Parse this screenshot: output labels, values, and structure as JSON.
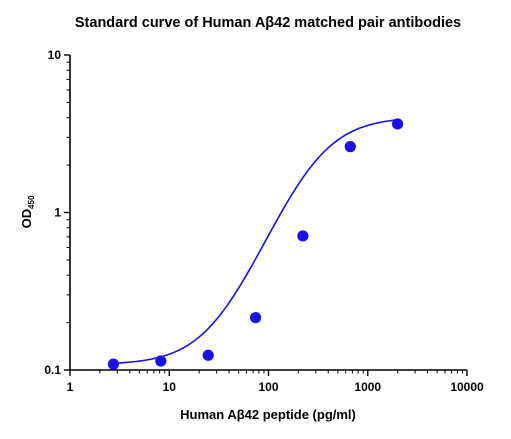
{
  "chart_data": {
    "type": "scatter",
    "title": "Standard curve of Human Aβ42 matched pair antibodies",
    "xlabel": "Human Aβ42 peptide (pg/ml)",
    "ylabel": "OD",
    "ylabel_subscript": "450",
    "x_scale": "log",
    "y_scale": "log",
    "xlim": [
      1,
      10000
    ],
    "ylim": [
      0.1,
      10
    ],
    "x_ticks": [
      {
        "value": 1,
        "label": "1"
      },
      {
        "value": 10,
        "label": "10"
      },
      {
        "value": 100,
        "label": "100"
      },
      {
        "value": 1000,
        "label": "1000"
      },
      {
        "value": 10000,
        "label": "10000"
      }
    ],
    "y_ticks": [
      {
        "value": 0.1,
        "label": "0.1"
      },
      {
        "value": 1,
        "label": "1"
      },
      {
        "value": 10,
        "label": "10"
      }
    ],
    "grid": false,
    "legend": "none",
    "series": [
      {
        "color": "#1a10e8",
        "points": [
          {
            "x": 2.74,
            "y": 0.109
          },
          {
            "x": 8.23,
            "y": 0.114
          },
          {
            "x": 24.7,
            "y": 0.124
          },
          {
            "x": 74.1,
            "y": 0.215
          },
          {
            "x": 222,
            "y": 0.71
          },
          {
            "x": 667,
            "y": 2.62
          },
          {
            "x": 2000,
            "y": 3.65
          }
        ],
        "fit": {
          "model": "4PL",
          "bottom": 0.108,
          "top": 4.05,
          "ec50": 290,
          "hill": 1.6
        }
      }
    ]
  }
}
